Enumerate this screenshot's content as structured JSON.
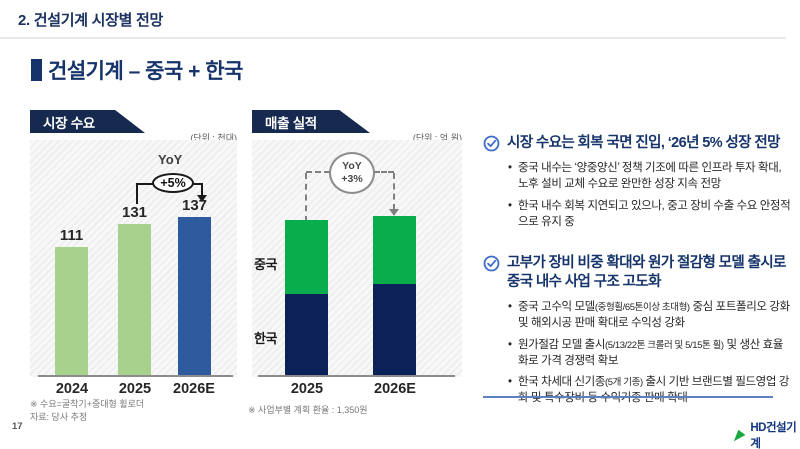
{
  "header": {
    "title": "2. 건설기계 시장별 전망"
  },
  "section_title": {
    "text": "건설기계 – 중국 + 한국"
  },
  "chart_data": [
    {
      "type": "bar",
      "title": "시장 수요",
      "unit": "(단위 : 천대)",
      "categories": [
        "2024",
        "2025",
        "2026E"
      ],
      "values": [
        111,
        131,
        137
      ],
      "bar_colors": [
        "#a9d18e",
        "#a9d18e",
        "#2e5a9e"
      ],
      "ylim": [
        0,
        140
      ],
      "grid": false,
      "yoy": {
        "label": "YoY",
        "value": "+5%"
      },
      "footnotes": [
        "※ 수요=굴착기+중대형 휠로더",
        "자료: 당사 추정"
      ]
    },
    {
      "type": "bar",
      "subtype": "stacked",
      "title": "매출 실적",
      "unit": "(단위 : 억 원)",
      "categories": [
        "2025",
        "2026E"
      ],
      "series": [
        {
          "name": "한국",
          "color": "#0d2159",
          "values": [
            52,
            59
          ]
        },
        {
          "name": "중국",
          "color": "#0aad4b",
          "values": [
            48,
            44
          ]
        }
      ],
      "totals": [
        100,
        103
      ],
      "value_labels_shown": false,
      "yoy": {
        "label": "YoY",
        "value": "+3%"
      },
      "footnotes": [
        "※ 사업부별 계획 환율 : 1,350원"
      ]
    }
  ],
  "right_panel": {
    "sections": [
      {
        "heading": "시장 수요는 회복 국면 진입, ‘26년 5% 성장 전망",
        "bullets": [
          {
            "runs": [
              {
                "text": "중국 내수는 ‘양중양신’ 정책 기조에 따른 인프라 투자 확대, 노후 설비 교체 수요로 완만한 성장 지속 전망"
              }
            ]
          },
          {
            "runs": [
              {
                "text": "한국 내수 회복 지연되고 있으나, 중고 장비 수출 수요 안정적으로 유지 중"
              }
            ]
          }
        ]
      },
      {
        "heading": "고부가 장비 비중 확대와 원가 절감형 모델 출시로 중국 내수 사업 구조 고도화",
        "bullets": [
          {
            "runs": [
              {
                "text": "중국 고수익 모델"
              },
              {
                "text": "(중형휠/65톤이상 초대형)",
                "small": true
              },
              {
                "text": " 중심 포트폴리오 강화 및 해외시공 판매 확대로 수익성 강화"
              }
            ]
          },
          {
            "runs": [
              {
                "text": "원가절감 모델 출시"
              },
              {
                "text": "(5/13/22톤 크롤러 및 5/15톤 휠)",
                "small": true
              },
              {
                "text": " 및 생산 효율화로 가격 경쟁력 확보"
              }
            ]
          },
          {
            "runs": [
              {
                "text": "한국 차세대 신기종"
              },
              {
                "text": "(5개 기종)",
                "small": true
              },
              {
                "text": " 출시 기반 브랜드별 필드영업 강화 및 특수장비 등 수익기종 판매 확대"
              }
            ]
          }
        ]
      }
    ]
  },
  "footer": {
    "page_number": "17",
    "logo_text": "HD건설기계"
  },
  "colors": {
    "navy_banner": "#16294f",
    "title_navy": "#16346b",
    "light_green_bar": "#a9d18e",
    "blue_bar": "#2e5a9e",
    "bright_green_bar": "#0aad4b",
    "dark_navy_bar": "#0d2159",
    "check_blue": "#3e6cc8",
    "logo_green": "#1aa73e",
    "divider_blue": "#5d80c1"
  }
}
